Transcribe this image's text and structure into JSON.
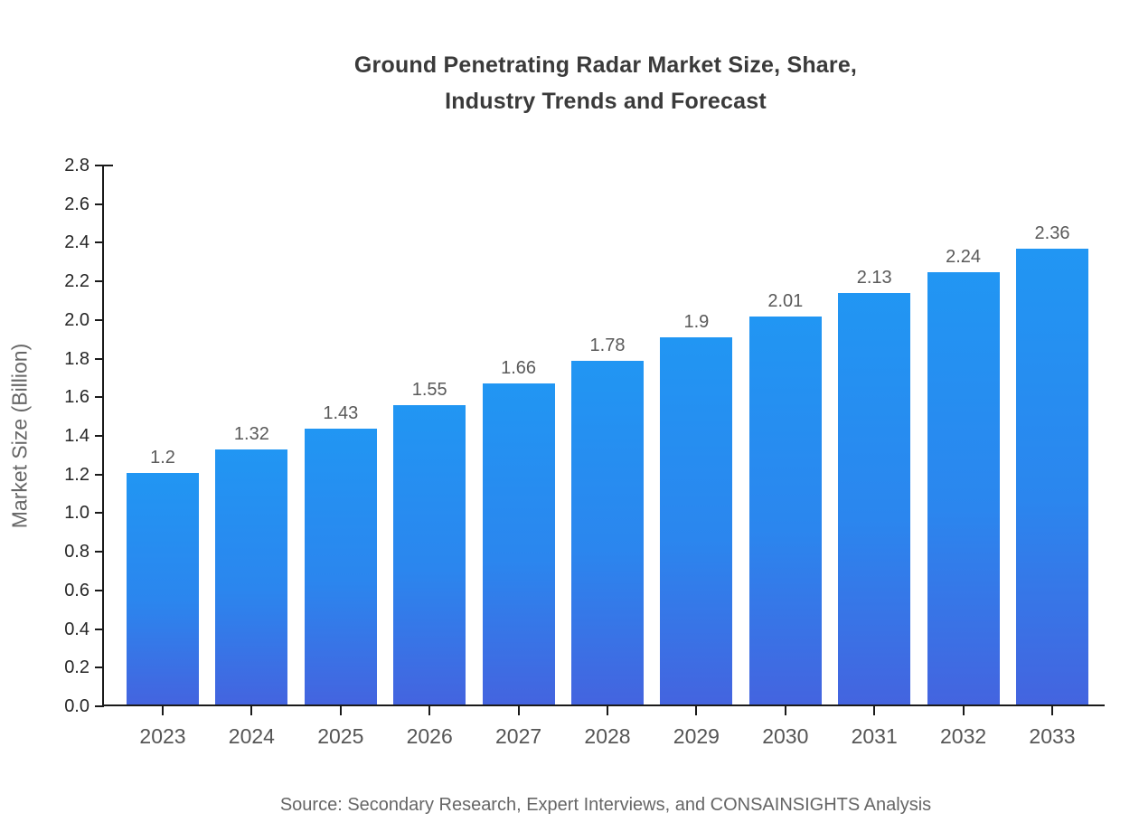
{
  "title": {
    "line1": "Ground Penetrating Radar Market Size, Share,",
    "line2": "Industry Trends and Forecast"
  },
  "source": "Source: Secondary Research, Expert Interviews, and CONSAINSIGHTS Analysis",
  "chart_data": {
    "type": "bar",
    "title": "Ground Penetrating Radar Market Size, Share, Industry Trends and Forecast",
    "categories": [
      "2023",
      "2024",
      "2025",
      "2026",
      "2027",
      "2028",
      "2029",
      "2030",
      "2031",
      "2032",
      "2033"
    ],
    "values": [
      1.2,
      1.32,
      1.43,
      1.55,
      1.66,
      1.78,
      1.9,
      2.01,
      2.13,
      2.24,
      2.36
    ],
    "value_labels": [
      "1.2",
      "1.32",
      "1.43",
      "1.55",
      "1.66",
      "1.78",
      "1.9",
      "2.01",
      "2.13",
      "2.24",
      "2.36"
    ],
    "xlabel": "",
    "ylabel": "Market Size (Billion)",
    "ylim": [
      0.0,
      2.8
    ],
    "ytick_step": 0.2,
    "ytick_format_decimals": 1,
    "grid": false,
    "legend": null,
    "colors": {
      "bar_gradient_top": "#2196f3",
      "bar_gradient_bottom": "#4464df",
      "axis": "#1a1a1a",
      "title_text": "#3a3a3a",
      "tick_label_text": "#262626",
      "category_label_text": "#555555",
      "value_label_text": "#595959",
      "axis_label_text": "#666666",
      "source_text": "#666666",
      "background": "#ffffff"
    }
  }
}
